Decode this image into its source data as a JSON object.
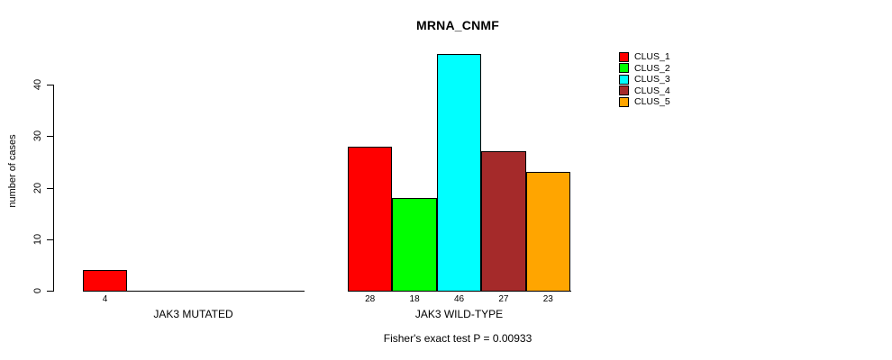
{
  "title": "MRNA_CNMF",
  "footnote": "Fisher's exact test P = 0.00933",
  "y_axis": {
    "label": "number of cases"
  },
  "chart_data": {
    "type": "bar",
    "title": "MRNA_CNMF",
    "xlabel": "",
    "ylabel": "number of cases",
    "ylim": [
      0,
      46
    ],
    "yticks": [
      0,
      10,
      20,
      30,
      40
    ],
    "grid": false,
    "legend_position": "top-right",
    "categories": [
      "JAK3 MUTATED",
      "JAK3 WILD-TYPE"
    ],
    "series": [
      {
        "name": "CLUS_1",
        "color": "#ff0000",
        "values": [
          4,
          28
        ]
      },
      {
        "name": "CLUS_2",
        "color": "#00ff00",
        "values": [
          0,
          18
        ]
      },
      {
        "name": "CLUS_3",
        "color": "#00ffff",
        "values": [
          0,
          46
        ]
      },
      {
        "name": "CLUS_4",
        "color": "#a52a2a",
        "values": [
          0,
          27
        ]
      },
      {
        "name": "CLUS_5",
        "color": "#ffa500",
        "values": [
          0,
          23
        ]
      }
    ],
    "groups": [
      {
        "label": "JAK3 MUTATED",
        "values": [
          4,
          0,
          0,
          0,
          0
        ],
        "bar_labels": [
          "4",
          "",
          "",
          "",
          ""
        ]
      },
      {
        "label": "JAK3 WILD-TYPE",
        "values": [
          28,
          18,
          46,
          27,
          23
        ],
        "bar_labels": [
          "28",
          "18",
          "46",
          "27",
          "23"
        ]
      }
    ],
    "annotation": "Fisher's exact test P = 0.00933"
  }
}
